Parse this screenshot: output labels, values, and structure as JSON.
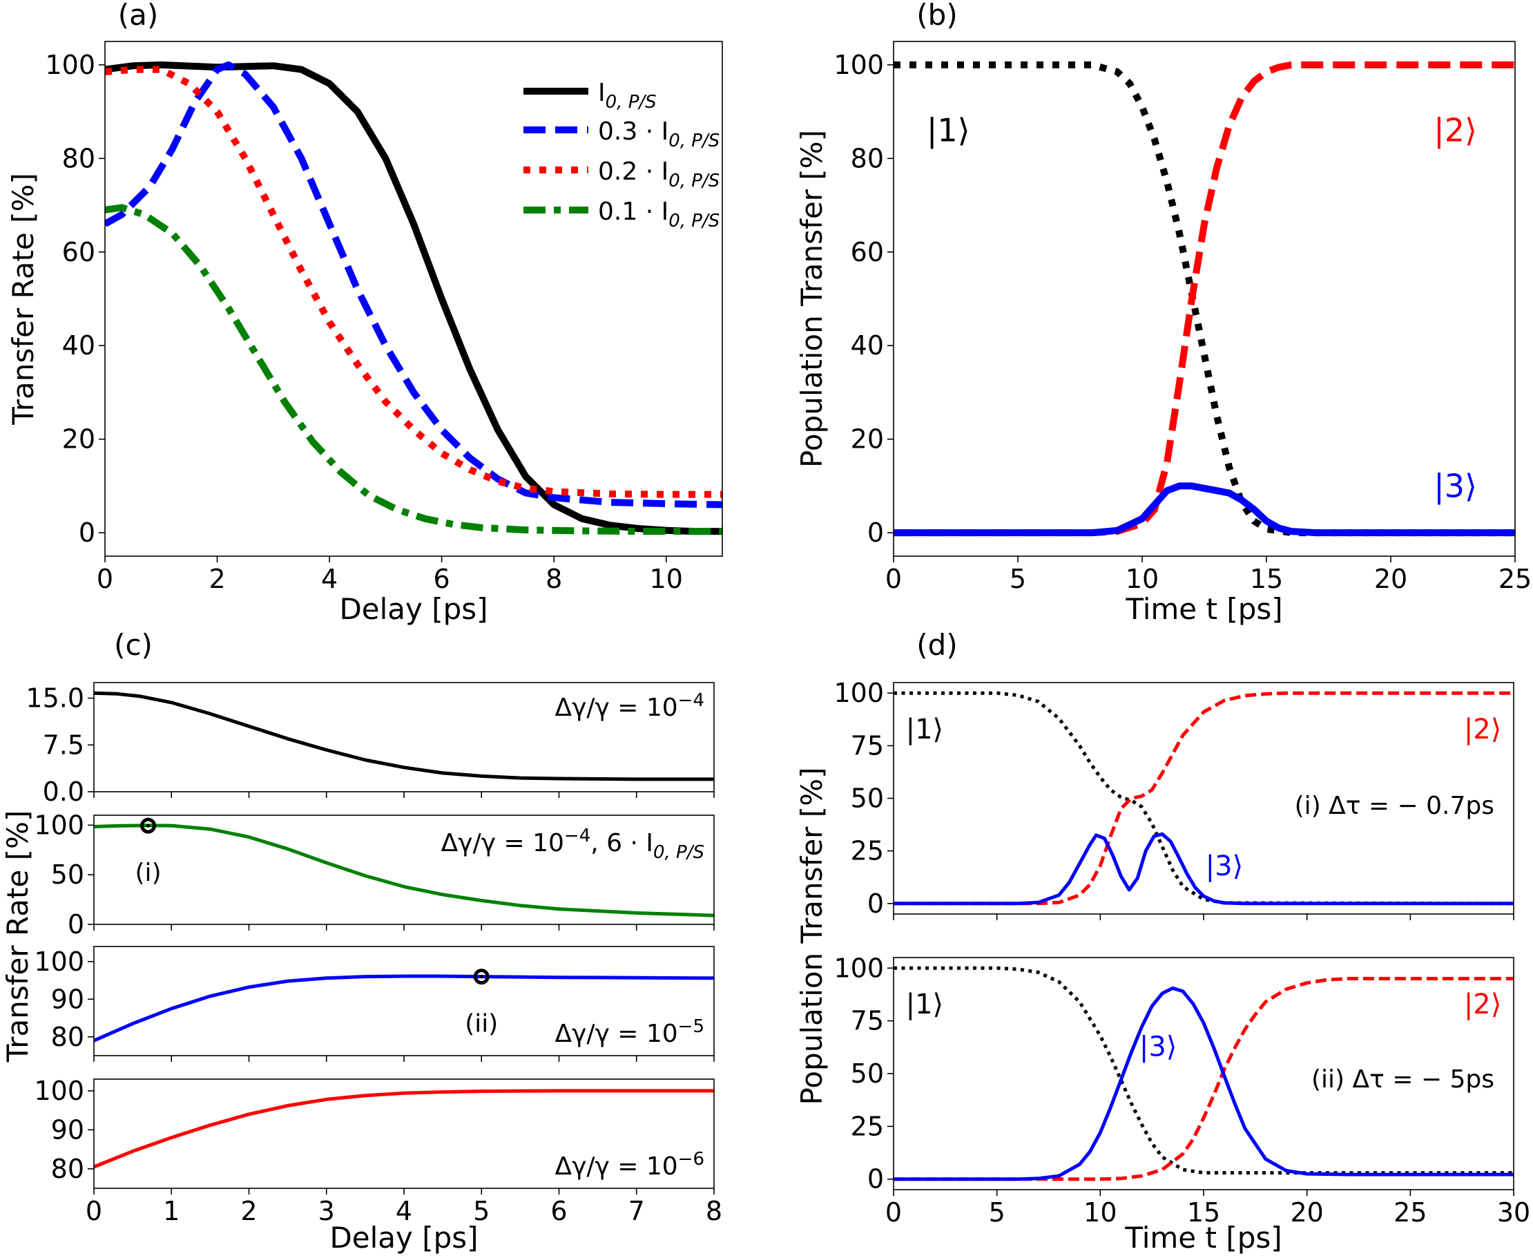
{
  "chart_data": [
    {
      "id": "a",
      "panel_label": "(a)",
      "type": "line",
      "xlabel": "Delay [ps]",
      "ylabel": "Transfer Rate [%]",
      "xlim": [
        0,
        11
      ],
      "ylim": [
        -5,
        105
      ],
      "xticks": [
        0,
        2,
        4,
        6,
        8,
        10
      ],
      "yticks": [
        0,
        20,
        40,
        60,
        80,
        100
      ],
      "legend_position": "top-right",
      "series": [
        {
          "name": "I_{0,P/S}",
          "legend_base": "I",
          "legend_sub": "0, P/S",
          "color": "#000000",
          "style": "solid",
          "x": [
            0,
            0.5,
            1,
            2,
            3,
            3.5,
            4,
            4.5,
            5,
            5.5,
            6,
            6.5,
            7,
            7.5,
            8,
            8.5,
            9,
            9.5,
            10,
            10.5,
            11
          ],
          "y": [
            99,
            99.8,
            100,
            99.5,
            99.8,
            99,
            96,
            90,
            80,
            66,
            50,
            35,
            22,
            12,
            6,
            3,
            1.6,
            0.9,
            0.5,
            0.3,
            0.3
          ]
        },
        {
          "name": "0.3 · I_{0,P/S}",
          "legend_base": "0.3 · I",
          "legend_sub": "0, P/S",
          "color": "#0000ff",
          "style": "dashed",
          "x": [
            0,
            0.3,
            0.8,
            1.2,
            1.6,
            2.0,
            2.2,
            2.5,
            3.0,
            3.5,
            4,
            4.5,
            5,
            5.5,
            6,
            6.5,
            7,
            7.5,
            8,
            9,
            10,
            11
          ],
          "y": [
            66,
            68,
            74,
            82,
            92,
            99,
            100,
            98,
            91,
            80,
            66,
            52,
            40,
            30,
            22,
            16,
            11.5,
            8.5,
            7.5,
            6.5,
            6.2,
            6
          ]
        },
        {
          "name": "0.2 · I_{0,P/S}",
          "legend_base": "0.2 · I",
          "legend_sub": "0, P/S",
          "color": "#ff0000",
          "style": "dotted",
          "x": [
            0,
            0.5,
            1,
            1.5,
            2,
            2.5,
            3,
            3.5,
            4,
            4.5,
            5,
            5.5,
            6,
            6.5,
            7,
            7.5,
            8,
            9,
            10,
            11
          ],
          "y": [
            98.5,
            99,
            99,
            96,
            90,
            80,
            68,
            56,
            45,
            36,
            28,
            22,
            17,
            13.5,
            11,
            9.5,
            8.8,
            8.3,
            8.2,
            8.2
          ]
        },
        {
          "name": "0.1 · I_{0,P/S}",
          "legend_base": "0.1 · I",
          "legend_sub": "0, P/S",
          "color": "#008000",
          "style": "dashdot",
          "x": [
            0,
            0.3,
            0.7,
            1.2,
            1.7,
            2.2,
            2.7,
            3.2,
            3.7,
            4.2,
            4.7,
            5.2,
            5.7,
            6.2,
            6.7,
            7.5,
            8.5,
            9.5,
            11
          ],
          "y": [
            69,
            69.5,
            68,
            64,
            57,
            48,
            38,
            28,
            19.5,
            13,
            8,
            5,
            3,
            1.8,
            1.1,
            0.6,
            0.4,
            0.3,
            0.3
          ]
        }
      ]
    },
    {
      "id": "b",
      "panel_label": "(b)",
      "type": "line",
      "xlabel": "Time t [ps]",
      "ylabel": "Population Transfer [%]",
      "xlim": [
        0,
        25
      ],
      "ylim": [
        -5,
        105
      ],
      "xticks": [
        0,
        5,
        10,
        15,
        20,
        25
      ],
      "yticks": [
        0,
        20,
        40,
        60,
        80,
        100
      ],
      "annotations": [
        {
          "text": "|1⟩",
          "x": 2.2,
          "y": 86,
          "color": "#000000"
        },
        {
          "text": "|2⟩",
          "x": 22.6,
          "y": 86,
          "color": "#ff0000"
        },
        {
          "text": "|3⟩",
          "x": 22.6,
          "y": 10,
          "color": "#0000ff"
        }
      ],
      "series": [
        {
          "name": "",
          "color": "#000000",
          "style": "dotted",
          "x": [
            0,
            8,
            9,
            9.5,
            10,
            10.5,
            11,
            11.5,
            12,
            12.5,
            13,
            13.5,
            14,
            14.5,
            15,
            16,
            25
          ],
          "y": [
            100,
            100,
            98.5,
            96,
            91,
            84,
            75,
            64,
            51,
            38,
            25,
            14,
            6.5,
            2.5,
            0.8,
            0,
            0
          ]
        },
        {
          "name": "",
          "color": "#ff0000",
          "style": "dashed",
          "x": [
            0,
            8,
            9,
            10,
            10.5,
            11,
            11.5,
            12,
            12.5,
            13,
            13.5,
            14,
            14.5,
            15,
            15.5,
            16,
            17,
            25
          ],
          "y": [
            0,
            0,
            0.3,
            2,
            5,
            15,
            32,
            50,
            66,
            78,
            87,
            93,
            96.5,
            98.5,
            99.5,
            100,
            100,
            100
          ]
        },
        {
          "name": "",
          "color": "#0000ff",
          "style": "solid",
          "x": [
            0,
            8,
            9,
            10,
            10.5,
            11,
            11.5,
            12,
            12.5,
            13,
            13.5,
            14,
            14.5,
            15,
            15.5,
            16,
            17,
            25
          ],
          "y": [
            0,
            0,
            0.5,
            3,
            6,
            9,
            10,
            10,
            9.5,
            9,
            8.5,
            7,
            5,
            2.5,
            1,
            0.3,
            0,
            0
          ]
        }
      ]
    },
    {
      "id": "c",
      "panel_label": "(c)",
      "type": "line",
      "xlabel": "Delay [ps]",
      "ylabel": "Transfer Rate [%]",
      "xlim": [
        0,
        8
      ],
      "xticks": [
        0,
        1,
        2,
        3,
        4,
        5,
        6,
        7,
        8
      ],
      "subplots": [
        {
          "label_main": "Δγ/γ = 10",
          "label_exp": "−4",
          "label_extra": "",
          "ylim": [
            0,
            17.5
          ],
          "yticks": [
            0,
            7.5,
            15
          ],
          "ytick_labels": [
            "0.0",
            "7.5",
            "15.0"
          ],
          "color": "#000000",
          "x": [
            0,
            0.3,
            0.6,
            1.0,
            1.5,
            2.0,
            2.5,
            3.0,
            3.5,
            4.0,
            4.5,
            5.0,
            5.5,
            6.0,
            7.0,
            8.0
          ],
          "y": [
            15.8,
            15.7,
            15.3,
            14.3,
            12.5,
            10.5,
            8.5,
            6.7,
            5.1,
            3.9,
            3.0,
            2.5,
            2.2,
            2.1,
            2.0,
            2.0
          ]
        },
        {
          "label_main": "Δγ/γ = 10",
          "label_exp": "−4",
          "label_extra": ", 6 · I",
          "label_extra_sub": "0, P/S",
          "ylim": [
            0,
            110
          ],
          "yticks": [
            0,
            50,
            100
          ],
          "ytick_labels": [
            "0",
            "50",
            "100"
          ],
          "color": "#008000",
          "marker": {
            "x": 0.7,
            "y": 99.5,
            "label": "(i)"
          },
          "x": [
            0,
            0.3,
            0.7,
            1.0,
            1.5,
            2.0,
            2.5,
            3.0,
            3.5,
            4.0,
            4.5,
            5.0,
            5.5,
            6.0,
            7.0,
            8.0
          ],
          "y": [
            98.5,
            99.3,
            99.8,
            99.5,
            96,
            88,
            76,
            62,
            49,
            38,
            30,
            24,
            19,
            15.5,
            11.5,
            9
          ]
        },
        {
          "label_main": "Δγ/γ = 10",
          "label_exp": "−5",
          "label_extra": "",
          "ylim": [
            75,
            104
          ],
          "yticks": [
            80,
            90,
            100
          ],
          "ytick_labels": [
            "80",
            "90",
            "100"
          ],
          "color": "#0000ff",
          "marker": {
            "x": 5.0,
            "y": 96,
            "label": "(ii)"
          },
          "x": [
            0,
            0.5,
            1.0,
            1.5,
            2.0,
            2.5,
            3.0,
            3.5,
            4.0,
            4.5,
            5.0,
            5.5,
            6.0,
            7.0,
            8.0
          ],
          "y": [
            79,
            83.5,
            87.5,
            90.8,
            93.2,
            94.8,
            95.6,
            96.0,
            96.1,
            96.1,
            96.0,
            95.9,
            95.8,
            95.7,
            95.6
          ]
        },
        {
          "label_main": "Δγ/γ = 10",
          "label_exp": "−6",
          "label_extra": "",
          "ylim": [
            75,
            103
          ],
          "yticks": [
            80,
            90,
            100
          ],
          "ytick_labels": [
            "80",
            "90",
            "100"
          ],
          "color": "#ff0000",
          "x": [
            0,
            0.5,
            1.0,
            1.5,
            2.0,
            2.5,
            3.0,
            3.5,
            4.0,
            4.5,
            5.0,
            6.0,
            7.0,
            8.0
          ],
          "y": [
            80.5,
            84.5,
            88,
            91.2,
            94,
            96.2,
            97.8,
            98.8,
            99.4,
            99.7,
            99.9,
            100,
            100,
            100
          ]
        }
      ]
    },
    {
      "id": "d",
      "panel_label": "(d)",
      "type": "line",
      "xlabel": "Time t [ps]",
      "ylabel": "Population Transfer [%]",
      "xlim": [
        0,
        30
      ],
      "xticks": [
        0,
        5,
        10,
        15,
        20,
        25,
        30
      ],
      "subplots": [
        {
          "ylim": [
            -5,
            105
          ],
          "yticks": [
            0,
            25,
            50,
            75,
            100
          ],
          "annotation": "(i) Δτ = − 0.7ps",
          "kets": [
            {
              "text": "|1⟩",
              "x": 1.5,
              "y": 83,
              "color": "#000000"
            },
            {
              "text": "|2⟩",
              "x": 28.5,
              "y": 83,
              "color": "#ff0000"
            },
            {
              "text": "|3⟩",
              "x": 16.0,
              "y": 18,
              "color": "#0000ff"
            }
          ],
          "series": [
            {
              "color": "#000000",
              "style": "dotted",
              "x": [
                0,
                5,
                6,
                7,
                8,
                9,
                9.5,
                10,
                10.5,
                11,
                11.5,
                12,
                12.5,
                13,
                13.5,
                14,
                15,
                16,
                30
              ],
              "y": [
                100,
                100,
                99,
                96,
                88,
                75,
                67,
                60,
                54,
                50.5,
                49,
                46,
                38,
                27,
                16,
                8,
                2,
                0.3,
                0
              ]
            },
            {
              "color": "#ff0000",
              "style": "dashed",
              "x": [
                0,
                7,
                8,
                9,
                9.5,
                10,
                10.5,
                11,
                11.5,
                12,
                12.5,
                13,
                14,
                15,
                16,
                17,
                18,
                19,
                20,
                30
              ],
              "y": [
                0,
                0,
                0.5,
                4,
                9,
                18,
                32,
                45,
                50,
                51,
                54,
                62,
                80,
                91,
                96.5,
                98.8,
                99.6,
                100,
                100,
                100
              ]
            },
            {
              "color": "#0000ff",
              "style": "solid",
              "x": [
                0,
                6,
                7,
                8,
                8.5,
                9,
                9.5,
                9.8,
                10.2,
                10.6,
                11,
                11.4,
                11.8,
                12.2,
                12.6,
                13,
                13.4,
                13.8,
                14.2,
                14.6,
                15,
                15.5,
                16,
                17,
                30
              ],
              "y": [
                0,
                0,
                0.5,
                4,
                10,
                19,
                28,
                32.5,
                31,
                23,
                13,
                6.5,
                12,
                25,
                32,
                33,
                29.5,
                22,
                14,
                7.5,
                3.5,
                1.2,
                0.3,
                0,
                0
              ]
            }
          ]
        },
        {
          "ylim": [
            -5,
            105
          ],
          "yticks": [
            0,
            25,
            50,
            75,
            100
          ],
          "annotation": "(ii) Δτ = − 5ps",
          "kets": [
            {
              "text": "|1⟩",
              "x": 1.5,
              "y": 83,
              "color": "#000000"
            },
            {
              "text": "|2⟩",
              "x": 28.5,
              "y": 83,
              "color": "#ff0000"
            },
            {
              "text": "|3⟩",
              "x": 12.8,
              "y": 63,
              "color": "#0000ff"
            }
          ],
          "series": [
            {
              "color": "#000000",
              "style": "dotted",
              "x": [
                0,
                5,
                6,
                7,
                8,
                9,
                10,
                10.5,
                11,
                11.5,
                12,
                12.5,
                13,
                14,
                15,
                16,
                18,
                30
              ],
              "y": [
                100,
                100,
                99.5,
                98,
                93.5,
                84,
                68,
                58,
                47,
                36,
                26,
                17,
                10.5,
                4.5,
                3,
                3,
                3,
                3
              ]
            },
            {
              "color": "#ff0000",
              "style": "dashed",
              "x": [
                0,
                8,
                10,
                11,
                12,
                13,
                14,
                14.5,
                15,
                15.5,
                16,
                16.5,
                17,
                17.5,
                18,
                19,
                20,
                21,
                22,
                30
              ],
              "y": [
                0,
                0,
                0,
                0.3,
                1.5,
                4.5,
                12,
                19,
                29,
                40,
                52,
                62,
                71,
                78,
                84,
                90,
                93,
                94.5,
                95,
                95
              ]
            },
            {
              "color": "#0000ff",
              "style": "solid",
              "x": [
                0,
                6,
                7,
                8,
                9,
                9.5,
                10,
                10.5,
                11,
                11.5,
                12,
                12.5,
                13,
                13.5,
                14,
                14.5,
                15,
                15.5,
                16,
                16.5,
                17,
                18,
                19,
                20,
                22,
                30
              ],
              "y": [
                0,
                0,
                0.3,
                1.5,
                7,
                13,
                22,
                34,
                47,
                60,
                72,
                82,
                88,
                90.5,
                89,
                83,
                74,
                62,
                49,
                36,
                24,
                9.5,
                4,
                2.5,
                2.2,
                2.2
              ]
            }
          ]
        }
      ]
    }
  ]
}
